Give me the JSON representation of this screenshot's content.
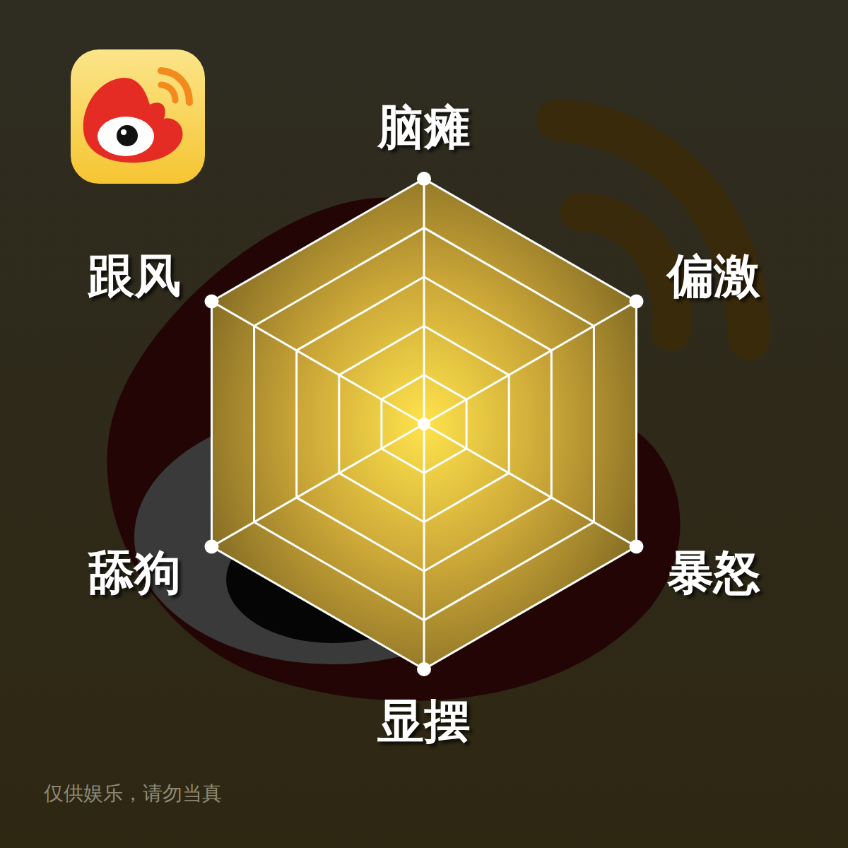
{
  "chart_data": {
    "type": "radar",
    "categories": [
      "脑瘫",
      "偏激",
      "暴怒",
      "显摆",
      "舔狗",
      "跟风"
    ],
    "values": [
      5,
      5,
      5,
      5,
      5,
      5
    ],
    "color": "#c9a537",
    "ylim": [
      0,
      5
    ],
    "yticks": [
      0,
      1,
      2,
      3,
      4,
      5
    ],
    "grid": true,
    "tick_labels": "x",
    "marker": "circle",
    "annotation": "仅供娱乐，请勿当真"
  }
}
